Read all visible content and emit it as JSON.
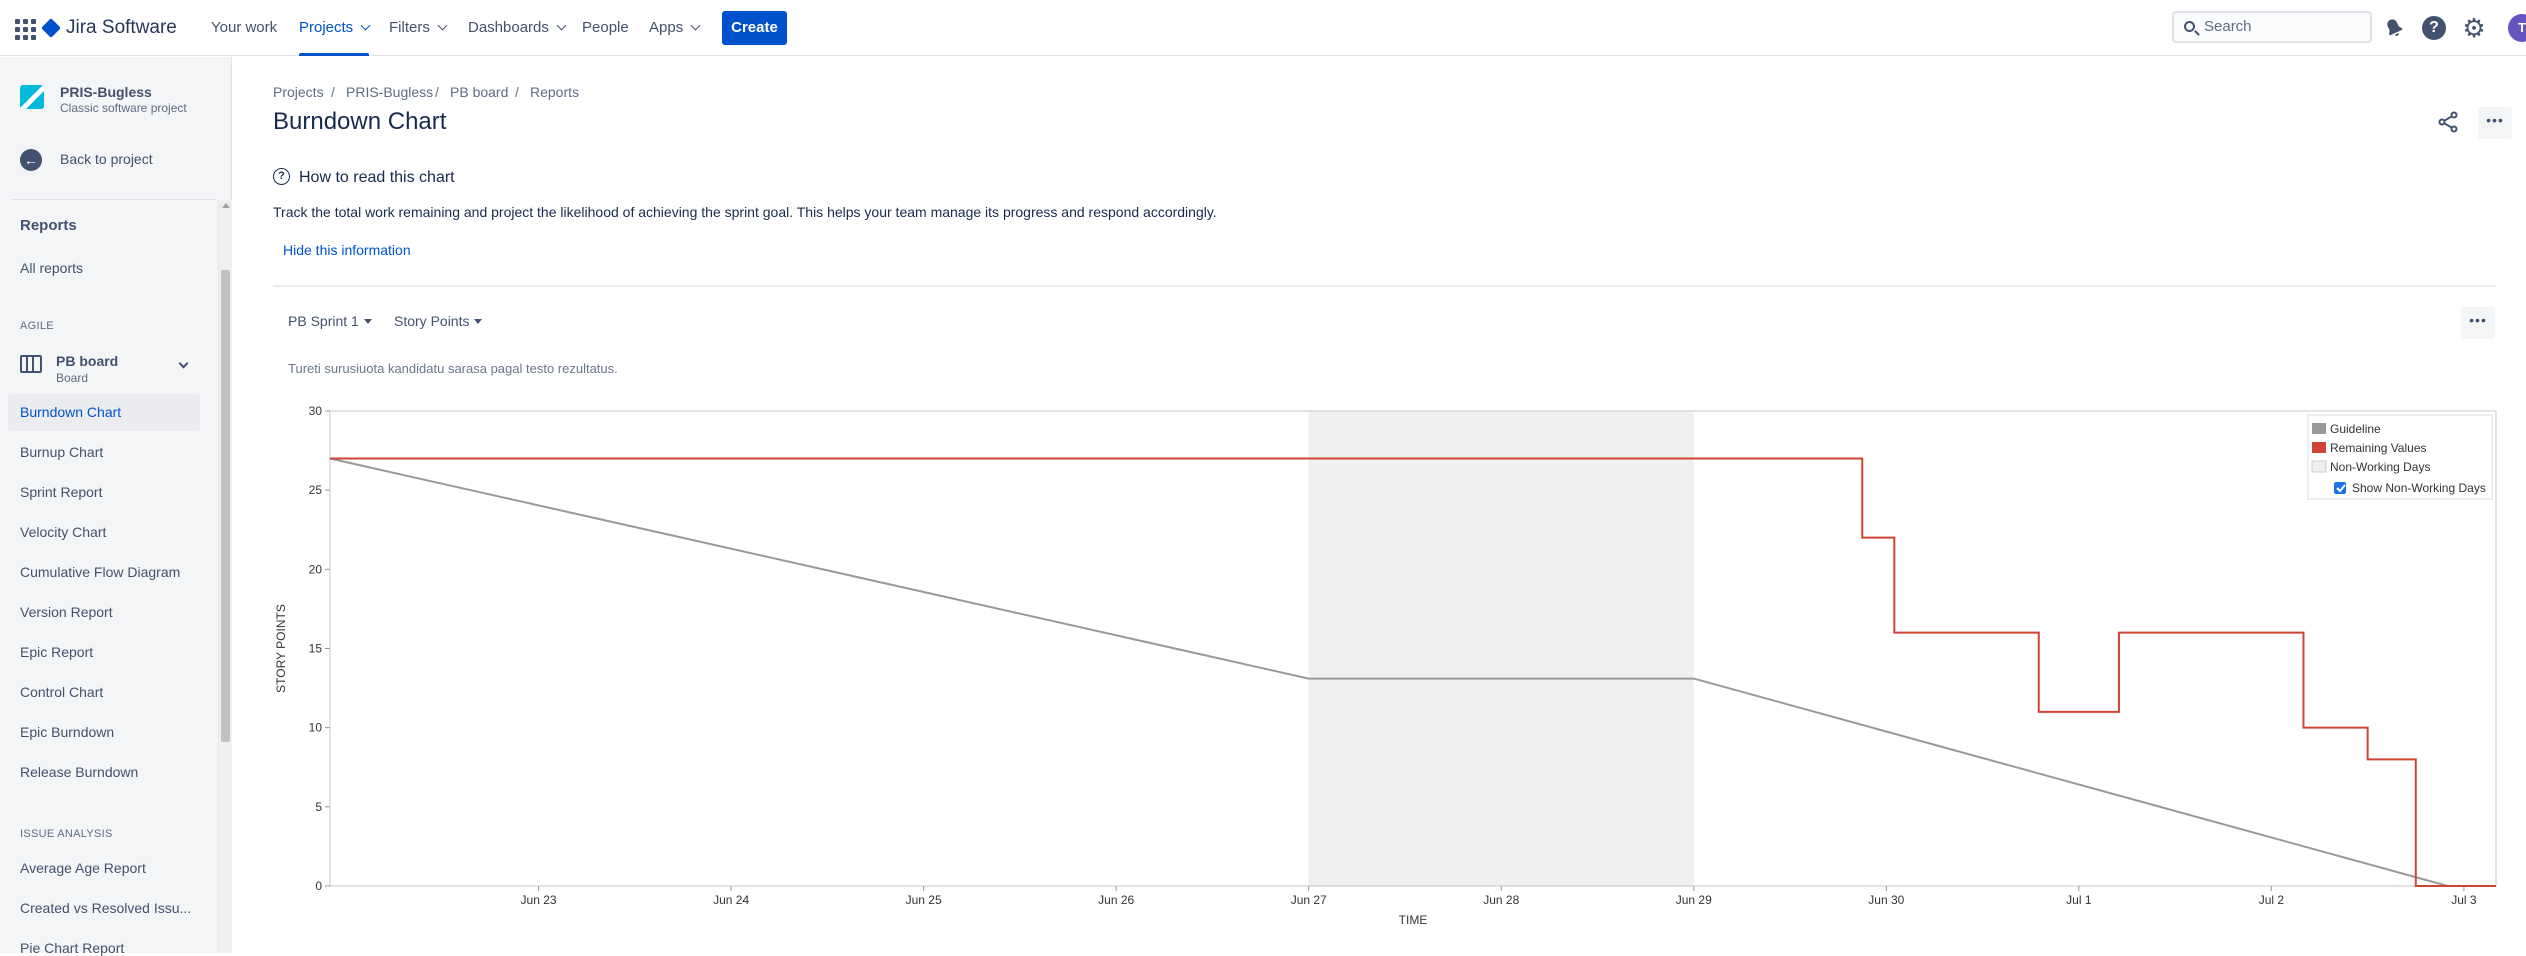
{
  "topnav": {
    "product": "Jira Software",
    "items": [
      {
        "label": "Your work",
        "active": false,
        "dropdown": false
      },
      {
        "label": "Projects",
        "active": true,
        "dropdown": true
      },
      {
        "label": "Filters",
        "active": false,
        "dropdown": true
      },
      {
        "label": "Dashboards",
        "active": false,
        "dropdown": true
      },
      {
        "label": "People",
        "active": false,
        "dropdown": false
      },
      {
        "label": "Apps",
        "active": false,
        "dropdown": true
      }
    ],
    "create_label": "Create",
    "search_placeholder": "Search",
    "help_glyph": "?",
    "avatar_initial": "T"
  },
  "sidebar": {
    "project_name": "PRIS-Bugless",
    "project_type": "Classic software project",
    "back_label": "Back to project",
    "reports_heading": "Reports",
    "all_reports": "All reports",
    "agile_heading": "AGILE",
    "board_name": "PB board",
    "board_sub": "Board",
    "agile_items": [
      {
        "label": "Burndown Chart",
        "active": true
      },
      {
        "label": "Burnup Chart",
        "active": false
      },
      {
        "label": "Sprint Report",
        "active": false
      },
      {
        "label": "Velocity Chart",
        "active": false
      },
      {
        "label": "Cumulative Flow Diagram",
        "active": false
      },
      {
        "label": "Version Report",
        "active": false
      },
      {
        "label": "Epic Report",
        "active": false
      },
      {
        "label": "Control Chart",
        "active": false
      },
      {
        "label": "Epic Burndown",
        "active": false
      },
      {
        "label": "Release Burndown",
        "active": false
      }
    ],
    "issue_heading": "ISSUE ANALYSIS",
    "issue_items": [
      {
        "label": "Average Age Report"
      },
      {
        "label": "Created vs Resolved Issu..."
      },
      {
        "label": "Pie Chart Report"
      }
    ]
  },
  "main": {
    "breadcrumbs": [
      "Projects",
      "PRIS-Bugless",
      "PB board",
      "Reports"
    ],
    "title": "Burndown Chart",
    "info_title": "How to read this chart",
    "info_text": "Track the total work remaining and project the likelihood of achieving the sprint goal. This helps your team manage its progress and respond accordingly.",
    "hide_label": "Hide this information",
    "sprint_select": "PB Sprint 1",
    "estimation_select": "Story Points",
    "chart_subtitle": "Tureti surusiuota kandidatu sarasa pagal testo rezultatus."
  },
  "colors": {
    "accent": "#0052cc",
    "remaining": "#d04437",
    "guideline": "#999999",
    "non_working": "#f0f0f0"
  },
  "chart_data": {
    "type": "line",
    "xlabel": "TIME",
    "ylabel": "STORY POINTS",
    "ylim": [
      0,
      30
    ],
    "y_ticks": [
      0,
      5,
      10,
      15,
      20,
      25,
      30
    ],
    "x_range": [
      "2023-06-22T10:00",
      "2023-07-03T16:00"
    ],
    "x_ticks": [
      {
        "t": "2023-06-23T12:00",
        "label": "Jun 23"
      },
      {
        "t": "2023-06-24T12:00",
        "label": "Jun 24"
      },
      {
        "t": "2023-06-25T12:00",
        "label": "Jun 25"
      },
      {
        "t": "2023-06-26T12:00",
        "label": "Jun 26"
      },
      {
        "t": "2023-06-27T12:00",
        "label": "Jun 27"
      },
      {
        "t": "2023-06-28T12:00",
        "label": "Jun 28"
      },
      {
        "t": "2023-06-29T12:00",
        "label": "Jun 29"
      },
      {
        "t": "2023-06-30T12:00",
        "label": "Jun 30"
      },
      {
        "t": "2023-07-01T12:00",
        "label": "Jul 1"
      },
      {
        "t": "2023-07-02T12:00",
        "label": "Jul 2"
      },
      {
        "t": "2023-07-03T12:00",
        "label": "Jul 3"
      }
    ],
    "non_working_days": [
      [
        "2023-06-27T12:00",
        "2023-06-29T12:00"
      ]
    ],
    "series": [
      {
        "name": "Guideline",
        "color": "#999999",
        "step": false,
        "points": [
          [
            "2023-06-22T10:00",
            27
          ],
          [
            "2023-06-27T12:00",
            13.1
          ],
          [
            "2023-06-29T12:00",
            13.1
          ],
          [
            "2023-07-03T10:00",
            0
          ]
        ]
      },
      {
        "name": "Remaining Values",
        "color": "#d04437",
        "step": true,
        "points": [
          [
            "2023-06-22T10:00",
            27
          ],
          [
            "2023-06-30T09:00",
            22
          ],
          [
            "2023-06-30T13:00",
            16
          ],
          [
            "2023-07-01T07:00",
            11
          ],
          [
            "2023-07-01T17:00",
            16
          ],
          [
            "2023-07-02T16:00",
            10
          ],
          [
            "2023-07-03T00:00",
            8
          ],
          [
            "2023-07-03T06:00",
            0
          ],
          [
            "2023-07-03T16:00",
            0
          ]
        ]
      }
    ],
    "legend": {
      "position": "top-right",
      "entries": [
        "Guideline",
        "Remaining Values",
        "Non-Working Days"
      ],
      "checkbox_label": "Show Non-Working Days",
      "checkbox_checked": true
    },
    "grid": false
  }
}
